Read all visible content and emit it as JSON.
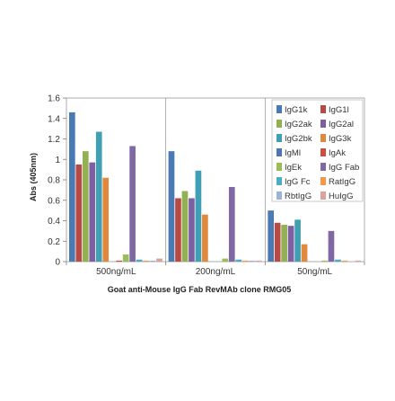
{
  "chart_data": {
    "type": "bar",
    "title": "",
    "xlabel": "Goat anti-Mouse IgG Fab RevMAb clone RMG05",
    "ylabel": "Abs (405nm)",
    "ylim": [
      0,
      1.6
    ],
    "yticks": [
      "0",
      "0.2",
      "0.4",
      "0.6",
      "0.8",
      "1",
      "1.2",
      "1.4",
      "1.6"
    ],
    "grid": false,
    "legend_position": "right",
    "categories": [
      "500ng/mL",
      "200ng/mL",
      "50ng/mL"
    ],
    "series": [
      {
        "name": "IgG1k",
        "color": "#4a7ab4",
        "values": [
          1.46,
          1.08,
          0.5
        ]
      },
      {
        "name": "IgG1l",
        "color": "#b84a45",
        "values": [
          0.95,
          0.62,
          0.38
        ]
      },
      {
        "name": "IgG2ak",
        "color": "#93b052",
        "values": [
          1.08,
          0.69,
          0.36
        ]
      },
      {
        "name": "IgG2al",
        "color": "#7d5fa2",
        "values": [
          0.97,
          0.62,
          0.35
        ]
      },
      {
        "name": "IgG2bk",
        "color": "#3f9fb5",
        "values": [
          1.27,
          0.89,
          0.41
        ]
      },
      {
        "name": "IgG3k",
        "color": "#e0893c",
        "values": [
          0.82,
          0.46,
          0.17
        ]
      },
      {
        "name": "IgMl",
        "color": "#4f74b4",
        "values": [
          0.0,
          0.0,
          0.0
        ]
      },
      {
        "name": "IgAk",
        "color": "#cf4d3f",
        "values": [
          0.01,
          0.0,
          0.0
        ]
      },
      {
        "name": "IgEk",
        "color": "#9bbd59",
        "values": [
          0.07,
          0.03,
          0.01
        ]
      },
      {
        "name": "IgG Fab",
        "color": "#8068a4",
        "values": [
          1.13,
          0.73,
          0.3
        ]
      },
      {
        "name": "IgG Fc",
        "color": "#4bacc6",
        "values": [
          0.02,
          0.02,
          0.02
        ]
      },
      {
        "name": "RatIgG",
        "color": "#f79646",
        "values": [
          0.01,
          0.01,
          0.01
        ]
      },
      {
        "name": "RbtIgG",
        "color": "#9db4d8",
        "values": [
          0.01,
          0.01,
          0.0
        ]
      },
      {
        "name": "HuIgG",
        "color": "#dba2a0",
        "values": [
          0.03,
          0.01,
          0.01
        ]
      }
    ]
  }
}
